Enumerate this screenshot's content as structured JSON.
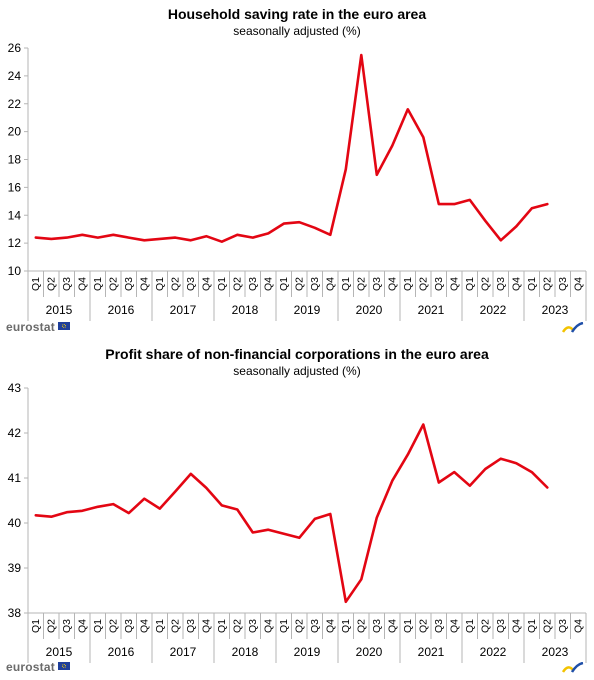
{
  "chart_data": [
    {
      "type": "line",
      "title": "Household saving rate in the euro area",
      "subtitle": "seasonally adjusted (%)",
      "xlabel": "",
      "ylabel": "",
      "ylim": [
        10,
        26
      ],
      "yticks": [
        10,
        12,
        14,
        16,
        18,
        20,
        22,
        24,
        26
      ],
      "grid": false,
      "years": [
        "2015",
        "2016",
        "2017",
        "2018",
        "2019",
        "2020",
        "2021",
        "2022",
        "2023"
      ],
      "quarters": [
        "Q1",
        "Q2",
        "Q3",
        "Q4"
      ],
      "series": [
        {
          "color": "#e30613",
          "values": [
            12.4,
            12.3,
            12.4,
            12.6,
            12.4,
            12.6,
            12.4,
            12.2,
            12.3,
            12.4,
            12.2,
            12.5,
            12.1,
            12.6,
            12.4,
            12.7,
            13.4,
            13.5,
            13.1,
            12.6,
            17.3,
            25.5,
            16.9,
            19.0,
            21.6,
            19.6,
            14.8,
            14.8,
            15.1,
            13.6,
            12.2,
            13.2,
            14.5,
            14.8
          ]
        }
      ]
    },
    {
      "type": "line",
      "title": "Profit share of non-financial corporations in the euro area",
      "subtitle": "seasonally adjusted (%)",
      "xlabel": "",
      "ylabel": "",
      "ylim": [
        38,
        43
      ],
      "yticks": [
        38,
        39,
        40,
        41,
        42,
        43
      ],
      "grid": false,
      "years": [
        "2015",
        "2016",
        "2017",
        "2018",
        "2019",
        "2020",
        "2021",
        "2022",
        "2023"
      ],
      "quarters": [
        "Q1",
        "Q2",
        "Q3",
        "Q4"
      ],
      "series": [
        {
          "color": "#e30613",
          "values": [
            40.17,
            40.14,
            40.24,
            40.27,
            40.36,
            40.42,
            40.22,
            40.54,
            40.32,
            40.7,
            41.09,
            40.78,
            40.39,
            40.3,
            39.79,
            39.85,
            39.76,
            39.67,
            40.09,
            40.2,
            38.25,
            38.75,
            40.12,
            40.94,
            41.52,
            42.19,
            40.9,
            41.13,
            40.83,
            41.2,
            41.43,
            41.33,
            41.13,
            40.79
          ]
        }
      ]
    }
  ],
  "branding": {
    "logo_text": "eurostat"
  }
}
